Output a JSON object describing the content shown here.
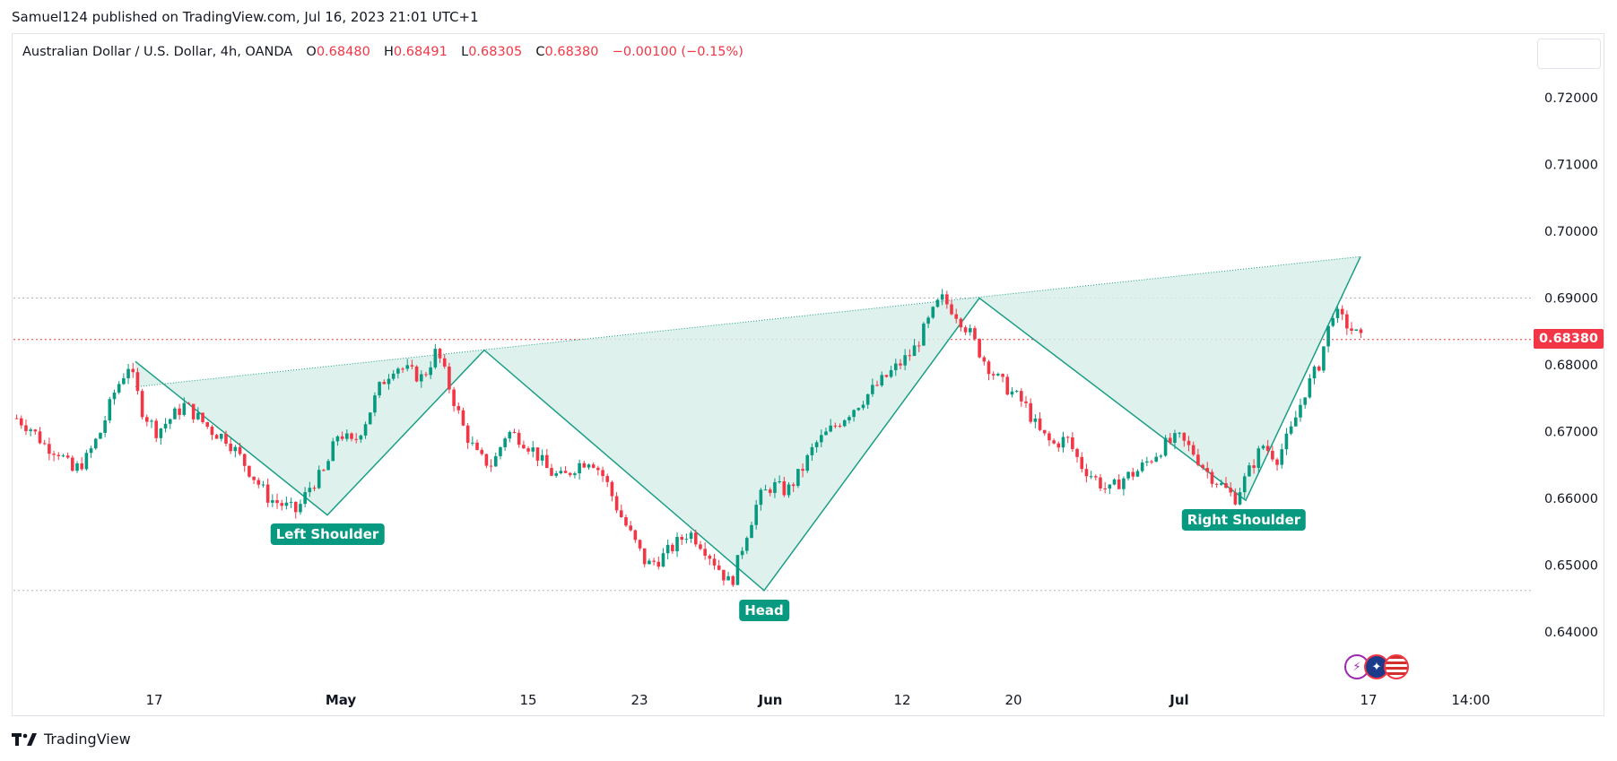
{
  "header": {
    "publish_line": "Samuel124 published on TradingView.com, Jul 16, 2023 21:01 UTC+1"
  },
  "legend": {
    "symbol": "Australian Dollar / U.S. Dollar, 4h, OANDA",
    "open_label": "O",
    "open": "0.68480",
    "high_label": "H",
    "high": "0.68491",
    "low_label": "L",
    "low": "0.68305",
    "close_label": "C",
    "close": "0.68380",
    "change": "−0.00100 (−0.15%)"
  },
  "price_badge": "0.68380",
  "footer": {
    "brand": "TradingView"
  },
  "labels": {
    "left_shoulder": "Left Shoulder",
    "head": "Head",
    "right_shoulder": "Right Shoulder"
  },
  "colors": {
    "up": "#089981",
    "down": "#f23645",
    "pattern_fill": "#d8efe9",
    "pattern_line": "#1a9e86",
    "grid": "#e0e3eb"
  },
  "chart_data": {
    "type": "candlestick",
    "symbol": "AUDUSD",
    "timeframe": "4h",
    "yticks": [
      "0.72000",
      "0.71000",
      "0.70000",
      "0.69000",
      "0.68000",
      "0.67000",
      "0.66000",
      "0.65000",
      "0.64000"
    ],
    "ylim": [
      0.633,
      0.729
    ],
    "xticks": [
      {
        "label": "17",
        "bold": false
      },
      {
        "label": "May",
        "bold": true
      },
      {
        "label": "15",
        "bold": false
      },
      {
        "label": "23",
        "bold": false
      },
      {
        "label": "Jun",
        "bold": true
      },
      {
        "label": "12",
        "bold": false
      },
      {
        "label": "20",
        "bold": false
      },
      {
        "label": "Jul",
        "bold": true
      },
      {
        "label": "17",
        "bold": false
      },
      {
        "label": "14:00",
        "bold": false
      }
    ],
    "last_price": 0.6838,
    "horizontal_levels": [
      0.69,
      0.6838,
      0.6462
    ],
    "pattern_points": [
      {
        "name": "left-start",
        "price": 0.6805
      },
      {
        "name": "left-shoulder",
        "price": 0.6575
      },
      {
        "name": "left-peak",
        "price": 0.6822
      },
      {
        "name": "head",
        "price": 0.6462
      },
      {
        "name": "right-peak",
        "price": 0.69
      },
      {
        "name": "right-shoulder",
        "price": 0.6597
      },
      {
        "name": "end",
        "price": 0.6962
      }
    ],
    "neckline": [
      0.6767,
      0.6962
    ],
    "trend_path": [
      0.672,
      0.6705,
      0.668,
      0.667,
      0.664,
      0.666,
      0.67,
      0.676,
      0.68,
      0.673,
      0.67,
      0.672,
      0.674,
      0.672,
      0.67,
      0.669,
      0.666,
      0.663,
      0.66,
      0.659,
      0.658,
      0.662,
      0.664,
      0.67,
      0.668,
      0.672,
      0.677,
      0.68,
      0.679,
      0.678,
      0.6822,
      0.676,
      0.67,
      0.666,
      0.665,
      0.67,
      0.669,
      0.667,
      0.664,
      0.663,
      0.665,
      0.666,
      0.663,
      0.658,
      0.654,
      0.65,
      0.651,
      0.653,
      0.655,
      0.653,
      0.65,
      0.647,
      0.654,
      0.66,
      0.662,
      0.661,
      0.664,
      0.668,
      0.67,
      0.672,
      0.674,
      0.676,
      0.678,
      0.68,
      0.682,
      0.686,
      0.69,
      0.688,
      0.685,
      0.681,
      0.678,
      0.676,
      0.674,
      0.67,
      0.668,
      0.669,
      0.665,
      0.663,
      0.661,
      0.663,
      0.664,
      0.666,
      0.668,
      0.669,
      0.667,
      0.664,
      0.662,
      0.66,
      0.664,
      0.668,
      0.666,
      0.67,
      0.676,
      0.68,
      0.688,
      0.686,
      0.6838
    ]
  }
}
